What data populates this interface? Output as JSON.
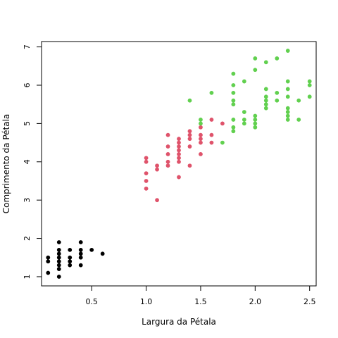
{
  "chart_data": {
    "type": "scatter",
    "title": "",
    "xlabel": "Largura da Pétala",
    "ylabel": "Comprimento da Pétala",
    "xlim": [
      0.04,
      2.56
    ],
    "ylim": [
      0.76,
      7.14
    ],
    "xticks": [
      0.5,
      1.0,
      1.5,
      2.0,
      2.5
    ],
    "xtick_labels": [
      "0.5",
      "1.0",
      "1.5",
      "2.0",
      "2.5"
    ],
    "yticks": [
      1,
      2,
      3,
      4,
      5,
      6,
      7
    ],
    "ytick_labels": [
      "1",
      "2",
      "3",
      "4",
      "5",
      "6",
      "7"
    ],
    "grid": false,
    "series": [
      {
        "color": "#000000",
        "points": [
          [
            0.1,
            1.1
          ],
          [
            0.1,
            1.4
          ],
          [
            0.1,
            1.5
          ],
          [
            0.2,
            1.0
          ],
          [
            0.2,
            1.2
          ],
          [
            0.2,
            1.3
          ],
          [
            0.2,
            1.4
          ],
          [
            0.2,
            1.5
          ],
          [
            0.2,
            1.6
          ],
          [
            0.2,
            1.7
          ],
          [
            0.2,
            1.9
          ],
          [
            0.3,
            1.3
          ],
          [
            0.3,
            1.4
          ],
          [
            0.3,
            1.5
          ],
          [
            0.3,
            1.7
          ],
          [
            0.4,
            1.3
          ],
          [
            0.4,
            1.5
          ],
          [
            0.4,
            1.6
          ],
          [
            0.4,
            1.7
          ],
          [
            0.4,
            1.9
          ],
          [
            0.5,
            1.7
          ],
          [
            0.6,
            1.6
          ]
        ]
      },
      {
        "color": "#DF536B",
        "points": [
          [
            1.0,
            3.3
          ],
          [
            1.0,
            3.5
          ],
          [
            1.0,
            3.7
          ],
          [
            1.0,
            4.0
          ],
          [
            1.0,
            4.1
          ],
          [
            1.1,
            3.0
          ],
          [
            1.1,
            3.8
          ],
          [
            1.1,
            3.9
          ],
          [
            1.2,
            3.9
          ],
          [
            1.2,
            4.0
          ],
          [
            1.2,
            4.2
          ],
          [
            1.2,
            4.4
          ],
          [
            1.2,
            4.7
          ],
          [
            1.3,
            3.6
          ],
          [
            1.3,
            4.0
          ],
          [
            1.3,
            4.1
          ],
          [
            1.3,
            4.2
          ],
          [
            1.3,
            4.3
          ],
          [
            1.3,
            4.4
          ],
          [
            1.3,
            4.5
          ],
          [
            1.3,
            4.6
          ],
          [
            1.4,
            3.9
          ],
          [
            1.4,
            4.4
          ],
          [
            1.4,
            4.6
          ],
          [
            1.4,
            4.7
          ],
          [
            1.4,
            4.8
          ],
          [
            1.5,
            4.2
          ],
          [
            1.5,
            4.5
          ],
          [
            1.5,
            4.6
          ],
          [
            1.5,
            4.7
          ],
          [
            1.5,
            4.9
          ],
          [
            1.6,
            4.5
          ],
          [
            1.6,
            4.7
          ],
          [
            1.6,
            5.1
          ],
          [
            1.7,
            5.0
          ]
        ]
      },
      {
        "color": "#61D04F",
        "points": [
          [
            1.4,
            5.6
          ],
          [
            1.5,
            5.0
          ],
          [
            1.5,
            5.1
          ],
          [
            1.6,
            5.8
          ],
          [
            1.7,
            4.5
          ],
          [
            1.8,
            4.8
          ],
          [
            1.8,
            4.9
          ],
          [
            1.8,
            5.1
          ],
          [
            1.8,
            5.5
          ],
          [
            1.8,
            5.6
          ],
          [
            1.8,
            5.8
          ],
          [
            1.8,
            6.0
          ],
          [
            1.8,
            6.3
          ],
          [
            1.9,
            5.0
          ],
          [
            1.9,
            5.1
          ],
          [
            1.9,
            5.3
          ],
          [
            1.9,
            6.1
          ],
          [
            2.0,
            4.9
          ],
          [
            2.0,
            5.0
          ],
          [
            2.0,
            5.1
          ],
          [
            2.0,
            5.2
          ],
          [
            2.0,
            6.4
          ],
          [
            2.0,
            6.7
          ],
          [
            2.1,
            5.4
          ],
          [
            2.1,
            5.5
          ],
          [
            2.1,
            5.6
          ],
          [
            2.1,
            5.7
          ],
          [
            2.1,
            5.9
          ],
          [
            2.1,
            6.6
          ],
          [
            2.2,
            5.6
          ],
          [
            2.2,
            5.8
          ],
          [
            2.2,
            6.7
          ],
          [
            2.3,
            5.1
          ],
          [
            2.3,
            5.2
          ],
          [
            2.3,
            5.3
          ],
          [
            2.3,
            5.4
          ],
          [
            2.3,
            5.7
          ],
          [
            2.3,
            5.9
          ],
          [
            2.3,
            6.1
          ],
          [
            2.3,
            6.9
          ],
          [
            2.4,
            5.1
          ],
          [
            2.4,
            5.6
          ],
          [
            2.5,
            5.7
          ],
          [
            2.5,
            6.0
          ],
          [
            2.5,
            6.1
          ]
        ]
      }
    ]
  }
}
